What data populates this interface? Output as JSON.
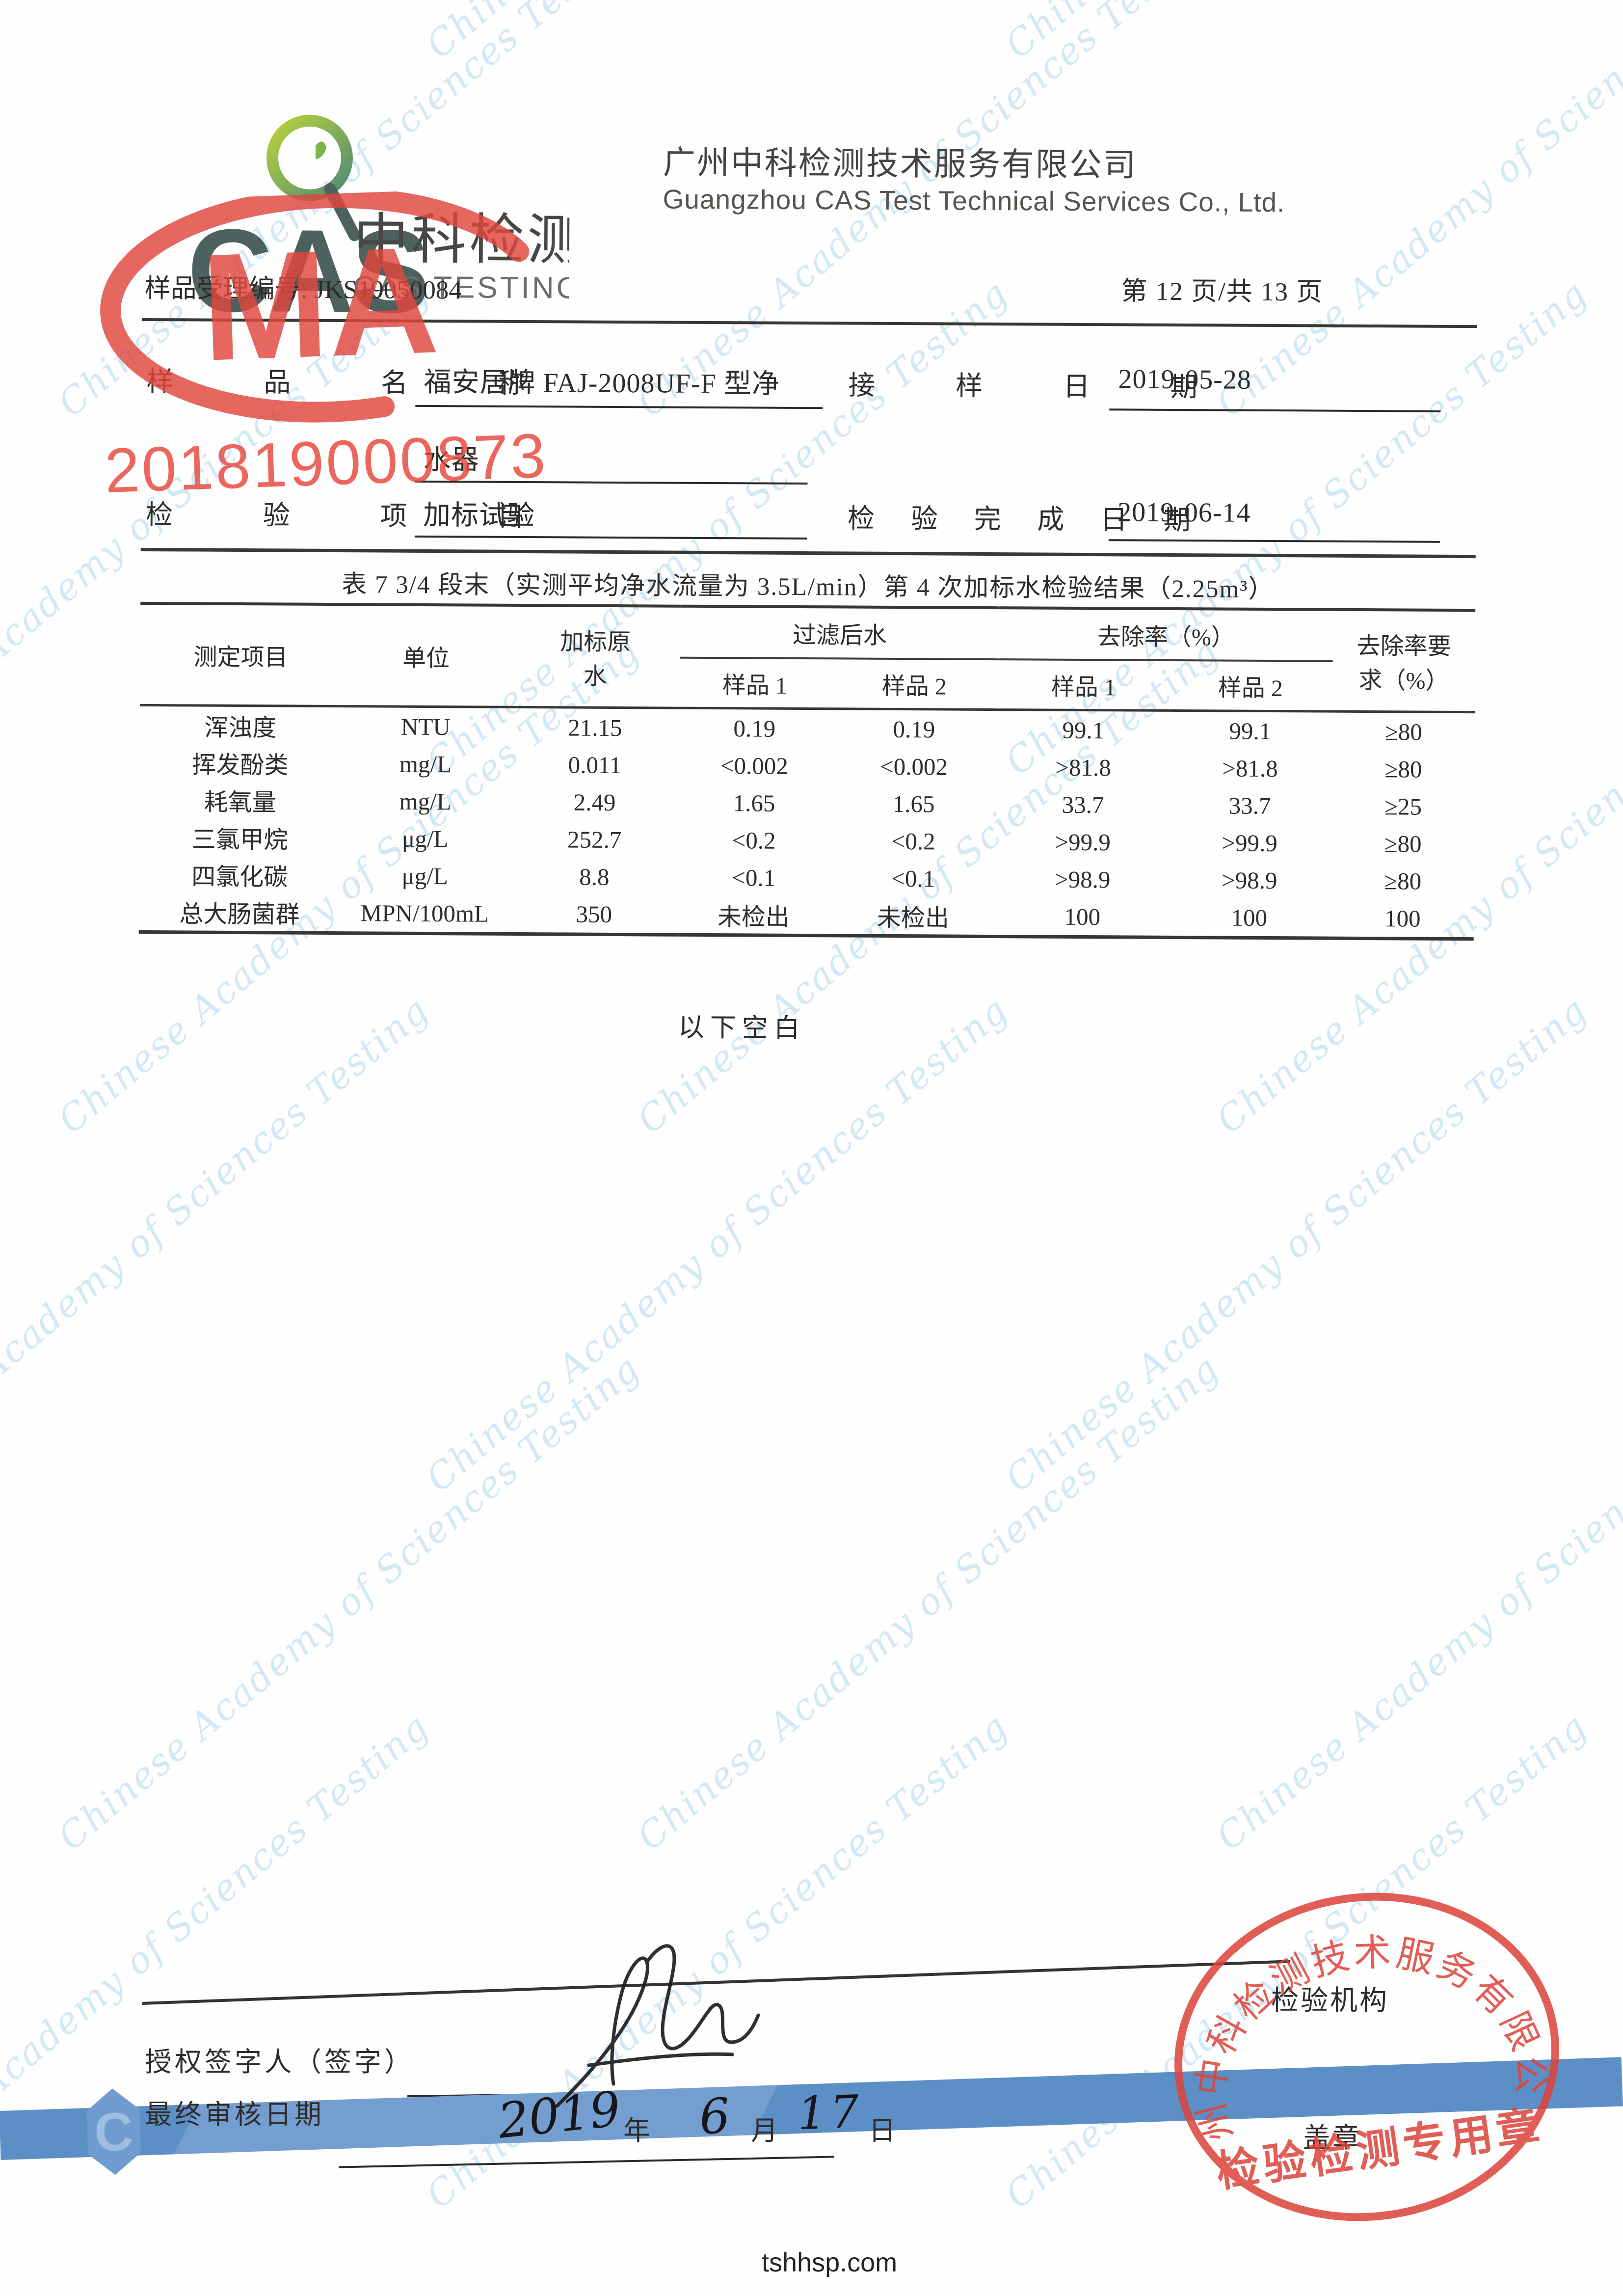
{
  "company": {
    "zh": "广州中科检测技术服务有限公司",
    "en": "Guangzhou CAS Test Technical Services Co., Ltd."
  },
  "logo": {
    "acronym": "CAS",
    "zh": "中科检测",
    "en": "CAS TESTING"
  },
  "meta": {
    "sample_no_label": "样品受理编号: ",
    "sample_no": "JKS19050084",
    "page_info": "第 12 页/共 13 页"
  },
  "sample_info": {
    "name_label": "样 品 名 称",
    "name_value_line1": "福安居牌 FAJ-2008UF-F 型净",
    "name_value_line2": "水器",
    "receive_date_label": "接 样 日 期",
    "receive_date": "2019-05-28",
    "item_label": "检 验 项 目",
    "item_value": "加标试验",
    "complete_date_label": "检 验 完 成 日 期",
    "complete_date": "2019-06-14"
  },
  "table": {
    "title": "表 7  3/4 段末（实测平均净水流量为 3.5L/min）第 4 次加标水检验结果（2.25m³）",
    "headers": {
      "item": "测定项目",
      "unit": "单位",
      "spiked_l1": "加标原",
      "spiked_l2": "水",
      "group_filtered": "过滤后水",
      "group_removal": "去除率（%）",
      "sub1": "样品 1",
      "sub2": "样品 2",
      "sub3": "样品 1",
      "sub4": "样品 2",
      "req_l1": "去除率要",
      "req_l2": "求（%）"
    },
    "rows": [
      [
        "浑浊度",
        "NTU",
        "21.15",
        "0.19",
        "0.19",
        "99.1",
        "99.1",
        "≥80"
      ],
      [
        "挥发酚类",
        "mg/L",
        "0.011",
        "<0.002",
        "<0.002",
        ">81.8",
        ">81.8",
        "≥80"
      ],
      [
        "耗氧量",
        "mg/L",
        "2.49",
        "1.65",
        "1.65",
        "33.7",
        "33.7",
        "≥25"
      ],
      [
        "三氯甲烷",
        "μg/L",
        "252.7",
        "<0.2",
        "<0.2",
        ">99.9",
        ">99.9",
        "≥80"
      ],
      [
        "四氯化碳",
        "μg/L",
        "8.8",
        "<0.1",
        "<0.1",
        ">98.9",
        ">98.9",
        "≥80"
      ],
      [
        "总大肠菌群",
        "MPN/100mL",
        "350",
        "未检出",
        "未检出",
        "100",
        "100",
        "100"
      ]
    ],
    "note": "以下空白"
  },
  "footer": {
    "signer_label": "授权签字人（签字）",
    "review_label": "最终审核日期",
    "date_year": "2019",
    "date_year_suffix": "年",
    "date_month": "6",
    "date_month_suffix": "月",
    "date_day": "17",
    "date_day_suffix": "日",
    "agency_line1": "检验机构",
    "agency_line2": "盖章",
    "band_hex_letter": "C",
    "site_url": "tshhsp.com"
  },
  "stamps": {
    "cma_letters": "MA",
    "cma_number": "201819000873",
    "round_arc": "广州中科检测技术服务有限公司",
    "round_center": "检验检测专用章"
  },
  "watermark": {
    "text": "Chinese Academy of Sciences Testing"
  },
  "colors": {
    "stamp_red": "#df4338",
    "band_blue": "#5d8fc7",
    "watermark_blue": "#7fc0e4",
    "logo_teal": "#4d615e",
    "logo_green": "#b9d23b"
  }
}
